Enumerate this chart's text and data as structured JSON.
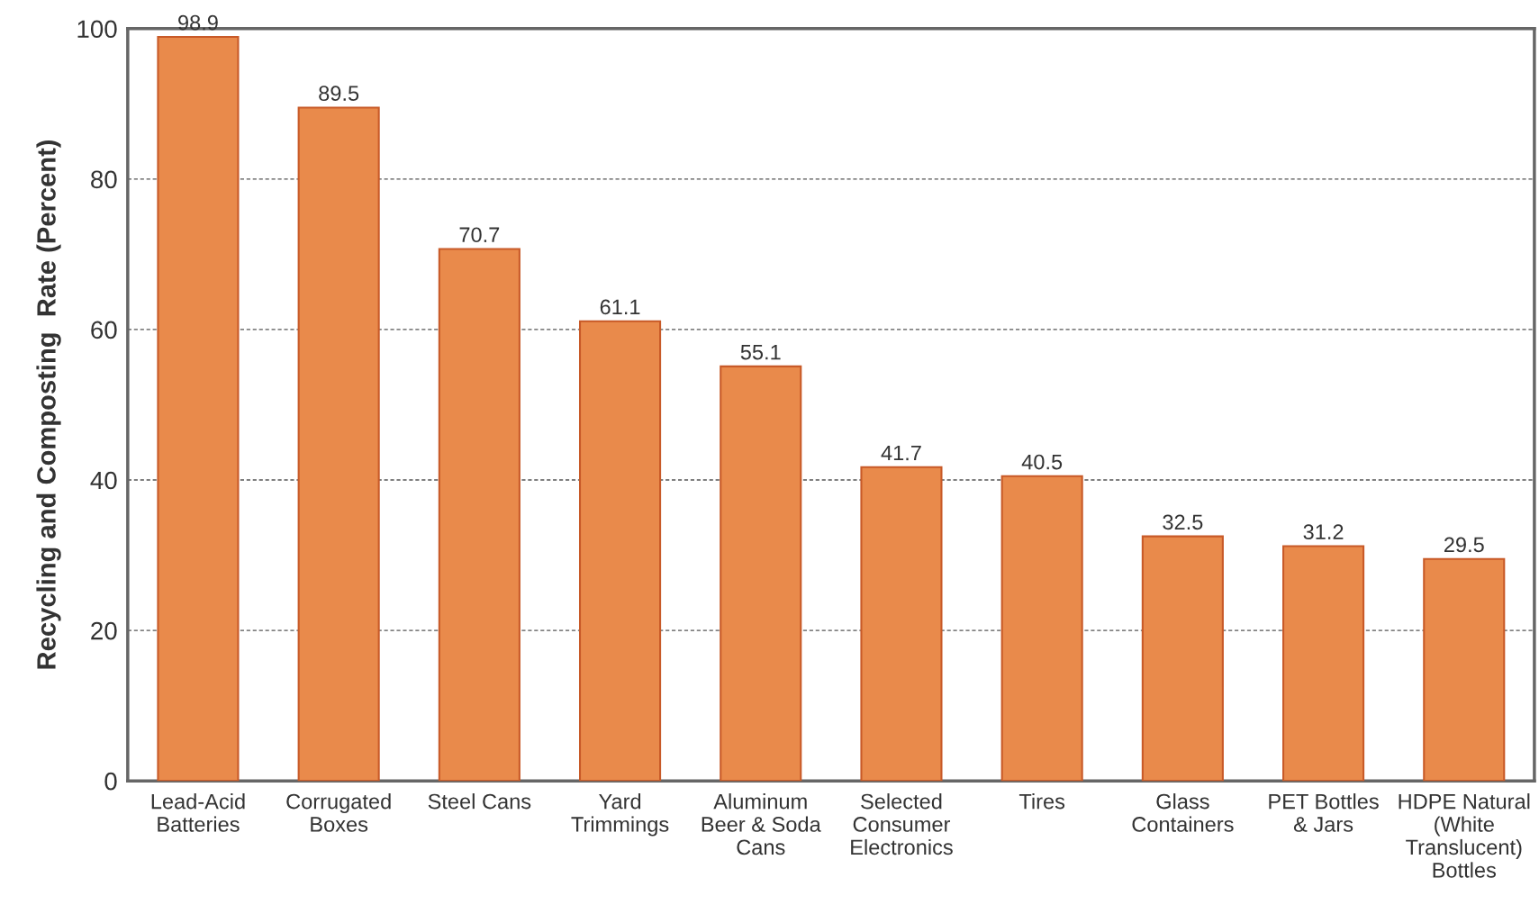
{
  "chart_data": {
    "type": "bar",
    "ylabel": "Recycling and Composting  Rate (Percent)",
    "categories": [
      "Lead-Acid\nBatteries",
      "Corrugated\nBoxes",
      "Steel Cans",
      "Yard\nTrimmings",
      "Aluminum\nBeer & Soda\nCans",
      "Selected\nConsumer\nElectronics",
      "Tires",
      "Glass\nContainers",
      "PET Bottles\n& Jars",
      "HDPE Natural\n(White\nTranslucent)\nBottles"
    ],
    "values": [
      98.9,
      89.5,
      70.7,
      61.1,
      55.1,
      41.7,
      40.5,
      32.5,
      31.2,
      29.5
    ],
    "color": "#e98a4b",
    "ylim": [
      0,
      100
    ],
    "yticks": [
      0,
      20,
      40,
      60,
      80,
      100
    ],
    "grid": "y",
    "data_labels": true
  }
}
